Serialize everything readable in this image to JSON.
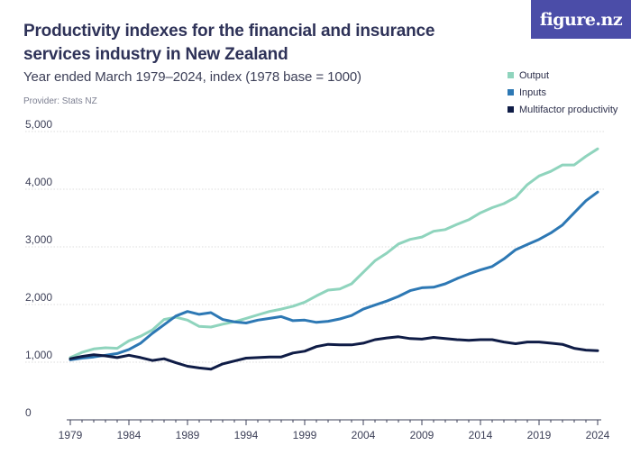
{
  "header": {
    "title": "Productivity indexes for the financial and insurance services industry in New Zealand",
    "subtitle": "Year ended March 1979–2024, index (1978 base = 1000)",
    "provider": "Provider: Stats NZ",
    "brand": "figure.nz"
  },
  "colors": {
    "brand_bg": "#4b4da8",
    "output": "#8fd4bd",
    "inputs": "#2d78b4",
    "multifactor": "#0f1c46",
    "gridline": "#dddddd"
  },
  "chart_data": {
    "type": "line",
    "title": "Productivity indexes for the financial and insurance services industry in New Zealand",
    "subtitle": "Year ended March 1979–2024, index (1978 base = 1000)",
    "xlabel": "",
    "ylabel": "",
    "xlim": [
      1979,
      2024
    ],
    "ylim": [
      0,
      5000
    ],
    "y_ticks": [
      0,
      1000,
      2000,
      3000,
      4000,
      5000
    ],
    "y_tick_labels": [
      "0",
      "1,000",
      "2,000",
      "3,000",
      "4,000",
      "5,000"
    ],
    "x_ticks": [
      1979,
      1984,
      1989,
      1994,
      1999,
      2004,
      2009,
      2014,
      2019,
      2024
    ],
    "x_tick_labels": [
      "1979",
      "1984",
      "1989",
      "1994",
      "1999",
      "2004",
      "2009",
      "2014",
      "2019",
      "2024"
    ],
    "grid": "horizontal",
    "legend_position": "top-right",
    "x": [
      1979,
      1980,
      1981,
      1982,
      1983,
      1984,
      1985,
      1986,
      1987,
      1988,
      1989,
      1990,
      1991,
      1992,
      1993,
      1994,
      1995,
      1996,
      1997,
      1998,
      1999,
      2000,
      2001,
      2002,
      2003,
      2004,
      2005,
      2006,
      2007,
      2008,
      2009,
      2010,
      2011,
      2012,
      2013,
      2014,
      2015,
      2016,
      2017,
      2018,
      2019,
      2020,
      2021,
      2022,
      2023,
      2024
    ],
    "series": [
      {
        "name": "Output",
        "color": "#8fd4bd",
        "values": [
          1080,
          1170,
          1230,
          1250,
          1240,
          1370,
          1450,
          1560,
          1740,
          1780,
          1730,
          1620,
          1610,
          1660,
          1700,
          1760,
          1820,
          1880,
          1920,
          1970,
          2040,
          2150,
          2250,
          2270,
          2360,
          2560,
          2760,
          2890,
          3050,
          3130,
          3170,
          3270,
          3300,
          3390,
          3470,
          3590,
          3680,
          3750,
          3860,
          4080,
          4230,
          4310,
          4420,
          4420,
          4570,
          4700
        ]
      },
      {
        "name": "Inputs",
        "color": "#2d78b4",
        "values": [
          1040,
          1070,
          1090,
          1120,
          1150,
          1220,
          1330,
          1500,
          1650,
          1800,
          1880,
          1830,
          1860,
          1740,
          1700,
          1680,
          1730,
          1760,
          1790,
          1720,
          1730,
          1690,
          1710,
          1750,
          1810,
          1920,
          1990,
          2060,
          2140,
          2240,
          2290,
          2300,
          2360,
          2450,
          2530,
          2600,
          2660,
          2790,
          2950,
          3040,
          3130,
          3240,
          3380,
          3590,
          3800,
          3950
        ]
      },
      {
        "name": "Multifactor productivity",
        "color": "#0f1c46",
        "values": [
          1060,
          1100,
          1130,
          1110,
          1080,
          1120,
          1080,
          1030,
          1060,
          990,
          930,
          900,
          880,
          970,
          1020,
          1070,
          1080,
          1090,
          1090,
          1160,
          1190,
          1270,
          1310,
          1300,
          1300,
          1330,
          1390,
          1420,
          1440,
          1410,
          1400,
          1430,
          1410,
          1390,
          1380,
          1390,
          1390,
          1350,
          1320,
          1350,
          1350,
          1330,
          1310,
          1240,
          1210,
          1200
        ]
      }
    ]
  }
}
